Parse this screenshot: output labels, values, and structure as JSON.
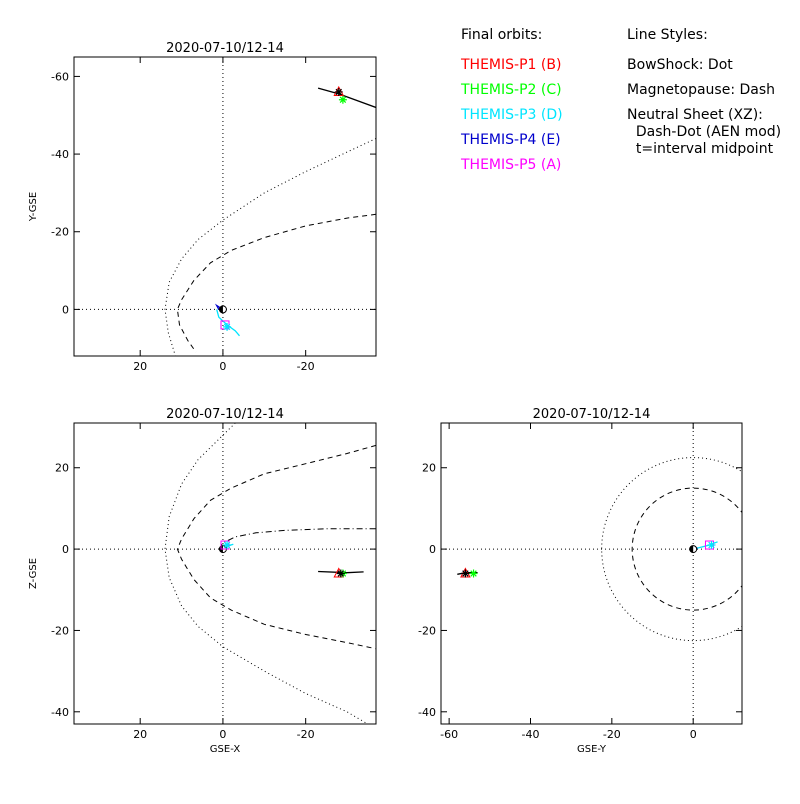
{
  "page": {
    "heading_orbits": "Final orbits:",
    "heading_styles": "Line Styles:",
    "probes": [
      {
        "label": "THEMIS-P1 (B)",
        "color": "#ff0000"
      },
      {
        "label": "THEMIS-P2 (C)",
        "color": "#00ff00"
      },
      {
        "label": "THEMIS-P3 (D)",
        "color": "#00e5ff"
      },
      {
        "label": "THEMIS-P4 (E)",
        "color": "#0000cc"
      },
      {
        "label": "THEMIS-P5 (A)",
        "color": "#ff00ff"
      }
    ],
    "styles": [
      "BowShock: Dot",
      "Magnetopause: Dash",
      "Neutral Sheet (XZ):",
      "  Dash-Dot (AEN mod)",
      "  t=interval midpoint"
    ]
  },
  "chart_data": [
    {
      "type": "line",
      "panel": "xy",
      "title": "2020-07-10/12-14",
      "xlabel": "",
      "ylabel": "Y-GSE",
      "xlim": [
        36,
        -37
      ],
      "ylim": [
        12,
        -65
      ],
      "xticks": [
        20,
        0,
        -20
      ],
      "yticks": [
        0,
        -20,
        -40,
        -60
      ],
      "reference_lines": {
        "x": 0,
        "y": 0
      },
      "series": [
        {
          "style": "dotted",
          "points": [
            [
              -37,
              -44
            ],
            [
              -30,
              -40.5
            ],
            [
              -20,
              -35.5
            ],
            [
              -10,
              -30
            ],
            [
              0,
              -23
            ],
            [
              6,
              -18
            ],
            [
              10,
              -13
            ],
            [
              13,
              -7
            ],
            [
              14,
              0
            ],
            [
              13.2,
              6
            ],
            [
              11.5,
              12
            ]
          ]
        },
        {
          "style": "dashed",
          "points": [
            [
              -37,
              -24.5
            ],
            [
              -30,
              -23.5
            ],
            [
              -20,
              -21.5
            ],
            [
              -10,
              -18.5
            ],
            [
              -2,
              -15.2
            ],
            [
              3,
              -12
            ],
            [
              7,
              -7.5
            ],
            [
              10,
              -2.5
            ],
            [
              11,
              0
            ],
            [
              10.5,
              4
            ],
            [
              8.5,
              8
            ],
            [
              6.5,
              11
            ]
          ]
        },
        {
          "name": "",
          "color": "#000000",
          "points": [
            [
              -23,
              -57
            ],
            [
              -28,
              -55.5
            ],
            [
              -37,
              -52
            ]
          ]
        },
        {
          "name": "",
          "color": "#00e5ff",
          "points": [
            [
              1.5,
              0
            ],
            [
              1,
              2
            ],
            [
              -1,
              4
            ],
            [
              -3,
              5.5
            ],
            [
              -4,
              6.8
            ]
          ]
        },
        {
          "name": "",
          "color": "#0000cc",
          "points": [
            [
              1,
              0
            ],
            [
              1.5,
              -1
            ],
            [
              0,
              0
            ]
          ]
        }
      ],
      "markers": [
        {
          "probe": "P1",
          "shape": "triangle",
          "color": "#ff0000",
          "x": -28,
          "y": -56
        },
        {
          "probe": "P2",
          "shape": "asterisk",
          "color": "#00ff00",
          "x": -29,
          "y": -54
        },
        {
          "probe": "P1",
          "shape": "asterisk",
          "color": "#000000",
          "x": -28,
          "y": -56
        },
        {
          "probe": "P5",
          "shape": "square",
          "color": "#ff00ff",
          "x": -0.5,
          "y": 4
        },
        {
          "probe": "P3",
          "shape": "asterisk",
          "color": "#00e5ff",
          "x": -1,
          "y": 4.5
        }
      ],
      "earth": {
        "x": 0,
        "y": 0
      }
    },
    {
      "type": "line",
      "panel": "xz",
      "title": "2020-07-10/12-14",
      "xlabel": "GSE-X",
      "ylabel": "Z-GSE",
      "xlim": [
        36,
        -37
      ],
      "ylim": [
        -43,
        31
      ],
      "xticks": [
        20,
        0,
        -20
      ],
      "yticks": [
        -40,
        -20,
        0,
        20
      ],
      "reference_lines": {
        "x": 0,
        "y": 0
      },
      "series": [
        {
          "style": "dotted",
          "points": [
            [
              -3,
              31
            ],
            [
              0,
              28
            ],
            [
              6,
              22
            ],
            [
              10,
              16
            ],
            [
              13,
              8
            ],
            [
              14,
              0
            ],
            [
              13,
              -7
            ],
            [
              10,
              -14
            ],
            [
              6,
              -19
            ],
            [
              0,
              -24
            ],
            [
              -10,
              -30
            ],
            [
              -20,
              -35.5
            ],
            [
              -30,
              -40
            ],
            [
              -35,
              -43
            ]
          ]
        },
        {
          "style": "dashed",
          "points": [
            [
              -37,
              25.5
            ],
            [
              -30,
              23.5
            ],
            [
              -20,
              21
            ],
            [
              -10,
              18.5
            ],
            [
              -2,
              15
            ],
            [
              3,
              12
            ],
            [
              7,
              7.5
            ],
            [
              10,
              2.5
            ],
            [
              11,
              0
            ],
            [
              10,
              -2.5
            ],
            [
              7,
              -7.5
            ],
            [
              3,
              -12
            ],
            [
              -2,
              -15
            ],
            [
              -10,
              -18.5
            ],
            [
              -20,
              -21
            ],
            [
              -30,
              -23
            ],
            [
              -37,
              -24.5
            ]
          ]
        },
        {
          "style": "dashdot",
          "points": [
            [
              1,
              0
            ],
            [
              0,
              1.5
            ],
            [
              -3,
              3
            ],
            [
              -8,
              4
            ],
            [
              -15,
              4.6
            ],
            [
              -25,
              5
            ],
            [
              -37,
              5
            ]
          ]
        },
        {
          "name": "",
          "color": "#000000",
          "points": [
            [
              -23,
              -5.5
            ],
            [
              -30,
              -5.8
            ],
            [
              -34,
              -5.6
            ]
          ]
        },
        {
          "name": "",
          "color": "#00e5ff",
          "points": [
            [
              0,
              0
            ],
            [
              -1,
              0.7
            ],
            [
              -2.5,
              1.2
            ]
          ]
        }
      ],
      "markers": [
        {
          "probe": "P1",
          "shape": "triangle",
          "color": "#ff0000",
          "x": -28,
          "y": -6
        },
        {
          "probe": "P2",
          "shape": "asterisk",
          "color": "#00ff00",
          "x": -29,
          "y": -6
        },
        {
          "probe": "P1",
          "shape": "asterisk",
          "color": "#000000",
          "x": -28.5,
          "y": -6
        },
        {
          "probe": "P5",
          "shape": "square",
          "color": "#ff00ff",
          "x": -0.5,
          "y": 1
        },
        {
          "probe": "P3",
          "shape": "asterisk",
          "color": "#00e5ff",
          "x": -1,
          "y": 1
        }
      ],
      "earth": {
        "x": 0,
        "y": 0
      }
    },
    {
      "type": "line",
      "panel": "yz",
      "title": "2020-07-10/12-14",
      "xlabel": "GSE-Y",
      "ylabel": "",
      "xlim": [
        -62,
        12
      ],
      "ylim": [
        -43,
        31
      ],
      "xticks": [
        -60,
        -40,
        -20,
        0
      ],
      "yticks": [
        -40,
        -20,
        0,
        20
      ],
      "reference_lines": {
        "x": 0,
        "y": 0
      },
      "series": [
        {
          "style": "dotted",
          "circle": {
            "cx": 0,
            "cy": 0,
            "r": 22.5
          }
        },
        {
          "style": "dashed",
          "circle": {
            "cx": 0,
            "cy": 0,
            "r": 15
          }
        },
        {
          "name": "",
          "color": "#000000",
          "points": [
            [
              -53,
              -5.8
            ],
            [
              -56,
              -5.8
            ],
            [
              -58,
              -6.2
            ]
          ]
        },
        {
          "name": "",
          "color": "#00e5ff",
          "points": [
            [
              0,
              0
            ],
            [
              2,
              0.5
            ],
            [
              4,
              1
            ],
            [
              6,
              1.8
            ]
          ]
        },
        {
          "name": "",
          "color": "#0000cc",
          "points": [
            [
              0,
              0
            ],
            [
              1,
              0.3
            ]
          ]
        }
      ],
      "markers": [
        {
          "probe": "P1",
          "shape": "triangle",
          "color": "#ff0000",
          "x": -56,
          "y": -6
        },
        {
          "probe": "P2",
          "shape": "asterisk",
          "color": "#00ff00",
          "x": -54,
          "y": -6
        },
        {
          "probe": "P1",
          "shape": "asterisk",
          "color": "#000000",
          "x": -56,
          "y": -6
        },
        {
          "probe": "P5",
          "shape": "square",
          "color": "#ff00ff",
          "x": 4,
          "y": 1
        },
        {
          "probe": "P3",
          "shape": "asterisk",
          "color": "#00e5ff",
          "x": 4.5,
          "y": 1
        }
      ],
      "earth": {
        "x": 0,
        "y": 0
      }
    }
  ]
}
